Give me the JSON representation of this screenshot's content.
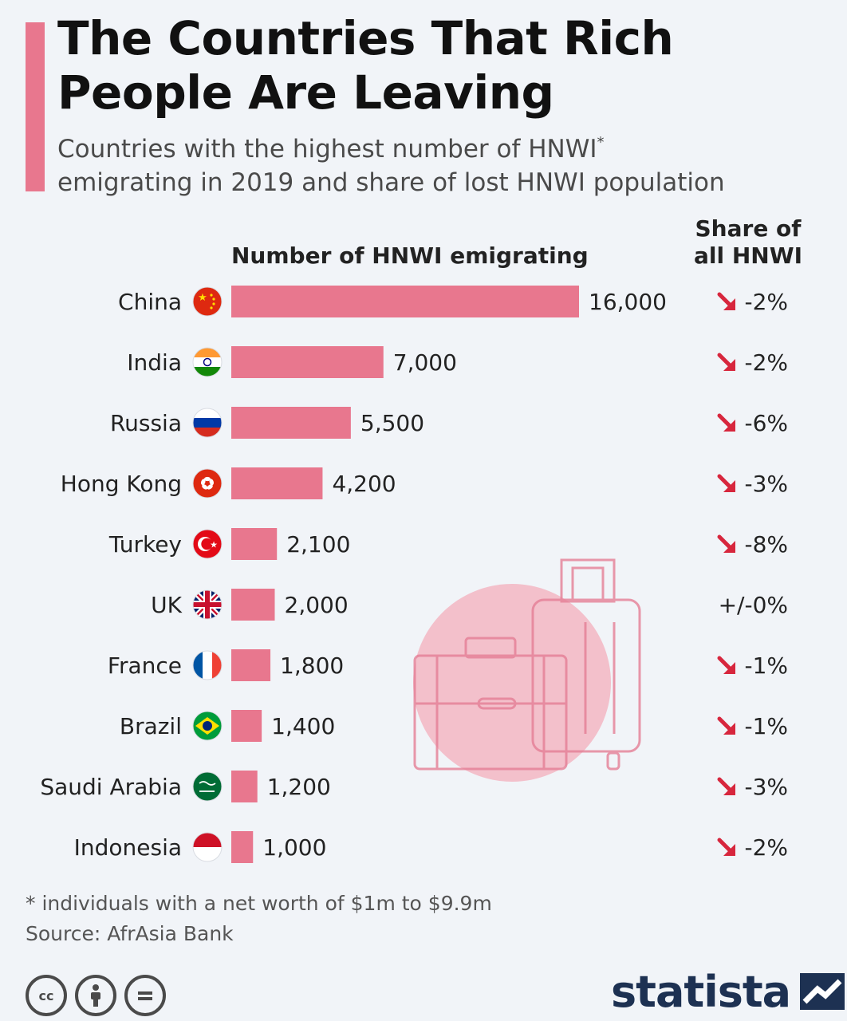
{
  "header": {
    "title": "The Countries That Rich People Are Leaving",
    "subtitle_main": "Countries with the highest number of HNWI",
    "subtitle_sup": "*",
    "subtitle_rest": "emigrating in 2019 and share of lost HNWI population"
  },
  "columns": {
    "bars_heading": "Number of HNWI emigrating",
    "share_heading_line1": "Share of",
    "share_heading_line2": "all HNWI"
  },
  "footer": {
    "footnote": "* individuals with a net worth of $1m to $9.9m",
    "source": "Source: AfrAsia Bank",
    "license_icons": [
      "cc",
      "by",
      "nd"
    ],
    "brand": "statista"
  },
  "colors": {
    "bar": "#e8778e",
    "accent": "#e8778e",
    "arrow": "#d7263d",
    "brand": "#1d3152"
  },
  "chart_data": {
    "type": "bar",
    "orientation": "horizontal",
    "categories": [
      "China",
      "India",
      "Russia",
      "Hong Kong",
      "Turkey",
      "UK",
      "France",
      "Brazil",
      "Saudi Arabia",
      "Indonesia"
    ],
    "values": [
      16000,
      7000,
      5500,
      4200,
      2100,
      2000,
      1800,
      1400,
      1200,
      1000
    ],
    "value_labels": [
      "16,000",
      "7,000",
      "5,500",
      "4,200",
      "2,100",
      "2,000",
      "1,800",
      "1,400",
      "1,200",
      "1,000"
    ],
    "share_labels": [
      "-2%",
      "-2%",
      "-6%",
      "-3%",
      "-8%",
      "+/-0%",
      "-1%",
      "-1%",
      "-3%",
      "-2%"
    ],
    "share_trend": [
      "down",
      "down",
      "down",
      "down",
      "down",
      "none",
      "down",
      "down",
      "down",
      "down"
    ],
    "flags": [
      "china",
      "india",
      "russia",
      "hong-kong",
      "turkey",
      "uk",
      "france",
      "brazil",
      "saudi-arabia",
      "indonesia"
    ],
    "xlim": [
      0,
      16000
    ],
    "grid": false,
    "legend": "none"
  }
}
